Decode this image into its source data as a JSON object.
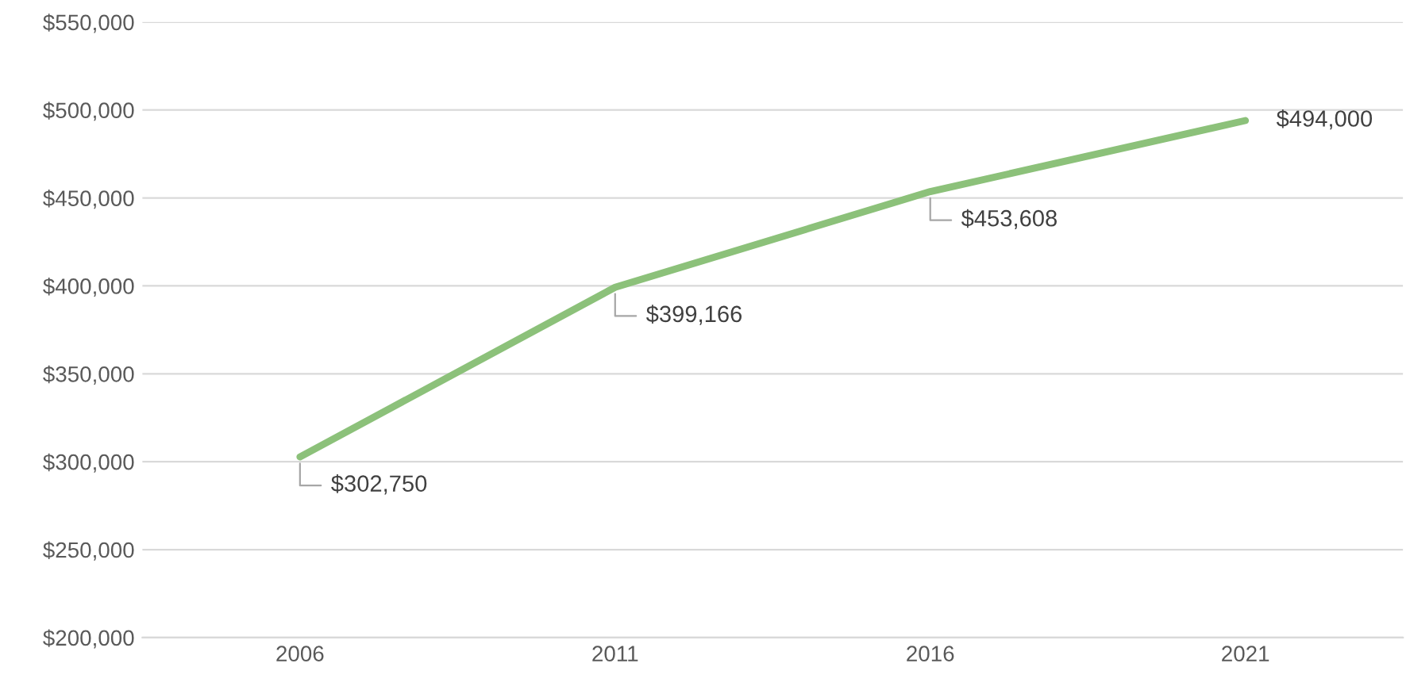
{
  "chart_data": {
    "type": "line",
    "categories": [
      "2006",
      "2011",
      "2016",
      "2021"
    ],
    "series": [
      {
        "color": "#8cc17a",
        "values": [
          302750,
          399166,
          453608,
          494000
        ],
        "value_labels": [
          "$302,750",
          "$399,166",
          "$453,608",
          "$494,000"
        ]
      }
    ],
    "ylim": [
      200000,
      550000
    ],
    "yticks": [
      {
        "value": 200000,
        "label": "$200,000"
      },
      {
        "value": 250000,
        "label": "$250,000"
      },
      {
        "value": 300000,
        "label": "$300,000"
      },
      {
        "value": 350000,
        "label": "$350,000"
      },
      {
        "value": 400000,
        "label": "$400,000"
      },
      {
        "value": 450000,
        "label": "$450,000"
      },
      {
        "value": 500000,
        "label": "$500,000"
      },
      {
        "value": 550000,
        "label": "$550,000"
      }
    ],
    "grid": "y",
    "marker": "none",
    "line_style": "solid"
  }
}
